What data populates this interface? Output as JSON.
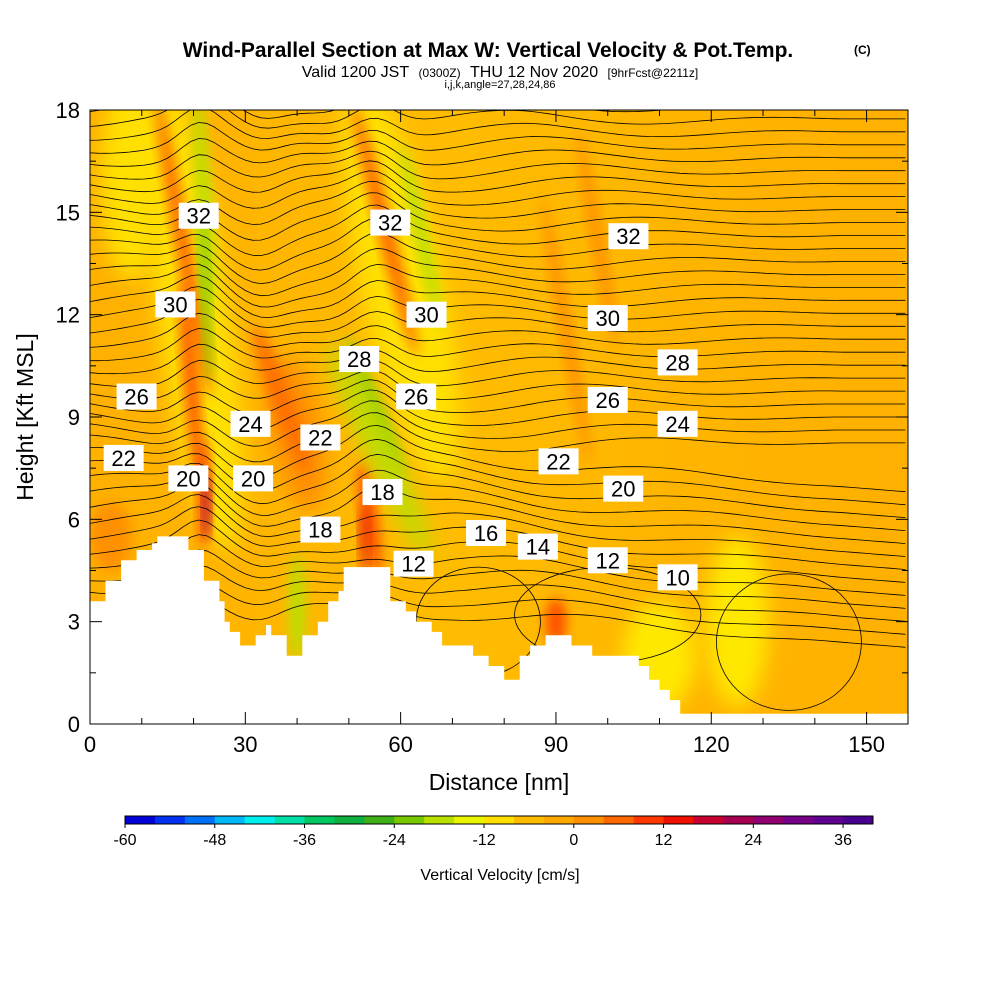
{
  "chart_data": {
    "type": "heatmap",
    "title": "Wind-Parallel Section at Max W: Vertical Velocity & Pot.Temp.",
    "title_mark": "(C)",
    "subtitle": {
      "valid": "Valid 1200 JST",
      "zulu": "(0300Z)",
      "date": "THU 12 Nov 2020",
      "forecast": "[9hrFcst@2211z]"
    },
    "params_line": "i,j,k,angle=27,28,24,86",
    "xlabel": "Distance [nm]",
    "ylabel": "Height [Kft MSL]",
    "xlim": [
      0,
      158
    ],
    "ylim": [
      0,
      18
    ],
    "x_ticks": [
      "0",
      "30",
      "60",
      "90",
      "120",
      "150"
    ],
    "y_ticks": [
      "0",
      "3",
      "6",
      "9",
      "12",
      "15",
      "18"
    ],
    "x_tick_values": [
      0,
      30,
      60,
      90,
      120,
      150
    ],
    "y_tick_values": [
      0,
      3,
      6,
      9,
      12,
      15,
      18
    ],
    "colorbar": {
      "title": "Vertical Velocity [cm/s]",
      "min": -60,
      "max": 40,
      "step": 4,
      "labels": [
        "-60",
        "-48",
        "-36",
        "-24",
        "-12",
        "0",
        "12",
        "24",
        "36"
      ],
      "label_values": [
        -60,
        -48,
        -36,
        -24,
        -12,
        0,
        12,
        24,
        36
      ],
      "colors": [
        "#0000d8",
        "#0030f0",
        "#0070f8",
        "#00b8f8",
        "#00f0f0",
        "#00e0a8",
        "#00c860",
        "#10b040",
        "#40b018",
        "#78c800",
        "#b8e000",
        "#e8f400",
        "#ffe000",
        "#ffbc00",
        "#ffa800",
        "#ff9000",
        "#ff6800",
        "#ff3800",
        "#f01000",
        "#c80030",
        "#a80050",
        "#900070",
        "#780088",
        "#600090",
        "#480090"
      ]
    },
    "theta_contour_labels": [
      {
        "text": "32",
        "x": 21,
        "y": 14.9
      },
      {
        "text": "32",
        "x": 58,
        "y": 14.7
      },
      {
        "text": "32",
        "x": 104,
        "y": 14.3
      },
      {
        "text": "30",
        "x": 16.5,
        "y": 12.3
      },
      {
        "text": "30",
        "x": 65,
        "y": 12.0
      },
      {
        "text": "30",
        "x": 100,
        "y": 11.9
      },
      {
        "text": "28",
        "x": 52,
        "y": 10.7
      },
      {
        "text": "28",
        "x": 113.5,
        "y": 10.6
      },
      {
        "text": "26",
        "x": 9,
        "y": 9.6
      },
      {
        "text": "26",
        "x": 63,
        "y": 9.6
      },
      {
        "text": "26",
        "x": 100,
        "y": 9.5
      },
      {
        "text": "24",
        "x": 31,
        "y": 8.8
      },
      {
        "text": "24",
        "x": 113.5,
        "y": 8.8
      },
      {
        "text": "22",
        "x": 6.5,
        "y": 7.8
      },
      {
        "text": "22",
        "x": 44.5,
        "y": 8.4
      },
      {
        "text": "22",
        "x": 90.5,
        "y": 7.7
      },
      {
        "text": "20",
        "x": 19,
        "y": 7.2
      },
      {
        "text": "20",
        "x": 31.5,
        "y": 7.2
      },
      {
        "text": "20",
        "x": 103,
        "y": 6.9
      },
      {
        "text": "18",
        "x": 56.5,
        "y": 6.8
      },
      {
        "text": "18",
        "x": 44.5,
        "y": 5.7
      },
      {
        "text": "16",
        "x": 76.5,
        "y": 5.6
      },
      {
        "text": "14",
        "x": 86.5,
        "y": 5.2
      },
      {
        "text": "12",
        "x": 62.5,
        "y": 4.7
      },
      {
        "text": "12",
        "x": 100,
        "y": 4.8
      },
      {
        "text": "10",
        "x": 113.5,
        "y": 4.3
      }
    ],
    "terrain_profile": [
      [
        0,
        3.6
      ],
      [
        3,
        3.6
      ],
      [
        3,
        4.2
      ],
      [
        6,
        4.2
      ],
      [
        6,
        4.8
      ],
      [
        9,
        4.8
      ],
      [
        9,
        5.1
      ],
      [
        12,
        5.1
      ],
      [
        12,
        5.3
      ],
      [
        13,
        5.3
      ],
      [
        13,
        5.5
      ],
      [
        19,
        5.5
      ],
      [
        19,
        5.1
      ],
      [
        22,
        5.1
      ],
      [
        22,
        4.2
      ],
      [
        25,
        4.2
      ],
      [
        25,
        3.6
      ],
      [
        26,
        3.6
      ],
      [
        26,
        3.0
      ],
      [
        27,
        3.0
      ],
      [
        27,
        2.7
      ],
      [
        29,
        2.7
      ],
      [
        29,
        2.3
      ],
      [
        32,
        2.3
      ],
      [
        32,
        2.6
      ],
      [
        34,
        2.6
      ],
      [
        34,
        2.9
      ],
      [
        35,
        2.9
      ],
      [
        35,
        2.6
      ],
      [
        38,
        2.6
      ],
      [
        38,
        2.0
      ],
      [
        41,
        2.0
      ],
      [
        41,
        2.6
      ],
      [
        44,
        2.6
      ],
      [
        44,
        3.0
      ],
      [
        46,
        3.0
      ],
      [
        46,
        3.6
      ],
      [
        48,
        3.6
      ],
      [
        48,
        3.9
      ],
      [
        49,
        3.9
      ],
      [
        49,
        4.6
      ],
      [
        58,
        4.6
      ],
      [
        58,
        3.6
      ],
      [
        61,
        3.6
      ],
      [
        61,
        3.3
      ],
      [
        63,
        3.3
      ],
      [
        63,
        3.0
      ],
      [
        66,
        3.0
      ],
      [
        66,
        2.7
      ],
      [
        68,
        2.7
      ],
      [
        68,
        2.3
      ],
      [
        74,
        2.3
      ],
      [
        74,
        2.0
      ],
      [
        77,
        2.0
      ],
      [
        77,
        1.7
      ],
      [
        80,
        1.7
      ],
      [
        80,
        1.3
      ],
      [
        83,
        1.3
      ],
      [
        83,
        2.0
      ],
      [
        85,
        2.0
      ],
      [
        85,
        2.3
      ],
      [
        88,
        2.3
      ],
      [
        88,
        2.6
      ],
      [
        93,
        2.6
      ],
      [
        93,
        2.3
      ],
      [
        97,
        2.3
      ],
      [
        97,
        2.0
      ],
      [
        106,
        2.0
      ],
      [
        106,
        1.7
      ],
      [
        108,
        1.7
      ],
      [
        108,
        1.3
      ],
      [
        110,
        1.3
      ],
      [
        110,
        1.0
      ],
      [
        112,
        1.0
      ],
      [
        112,
        0.7
      ],
      [
        114,
        0.7
      ],
      [
        114,
        0.3
      ],
      [
        118,
        0.3
      ],
      [
        158,
        0.3
      ]
    ],
    "grid": false,
    "legend": "bottom"
  }
}
